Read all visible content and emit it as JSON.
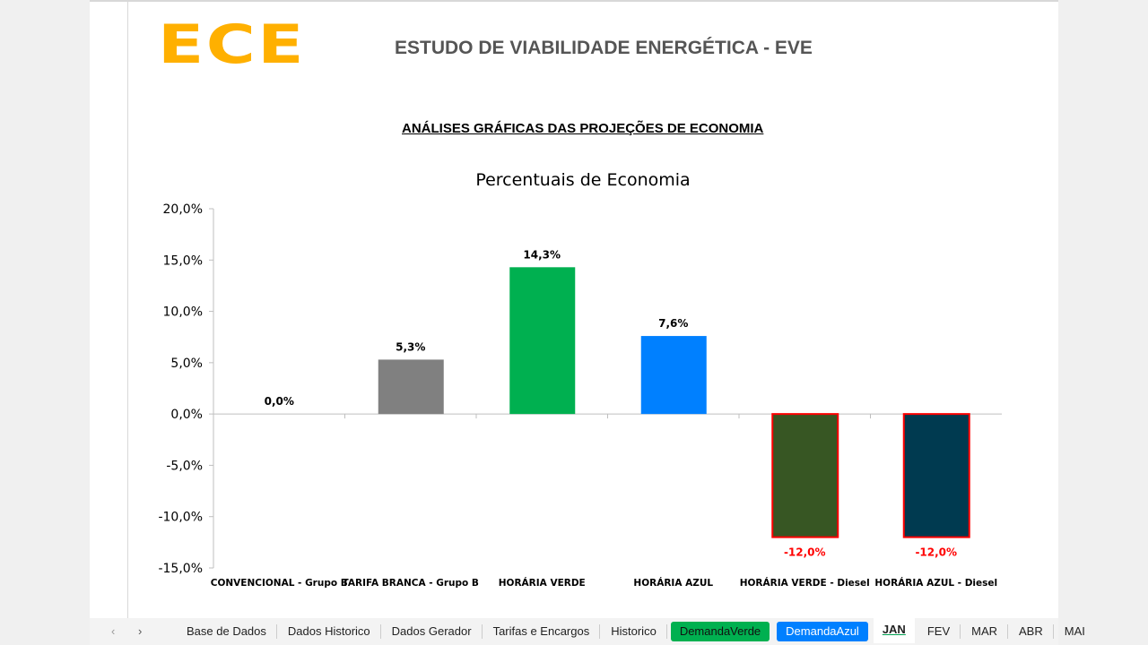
{
  "header": {
    "logo": "ECE",
    "title": "ESTUDO DE VIABILIDADE ENERGÉTICA - EVE",
    "subtitle": "ANÁLISES GRÁFICAS DAS PROJEÇÕES DE ECONOMIA"
  },
  "chart_data": {
    "type": "bar",
    "title": "Percentuais de Economia",
    "categories": [
      "CONVENCIONAL - Grupo B",
      "TARIFA BRANCA - Grupo B",
      "HORÁRIA VERDE",
      "HORÁRIA AZUL",
      "HORÁRIA VERDE - Diesel",
      "HORÁRIA AZUL - Diesel"
    ],
    "values": [
      0.0,
      5.3,
      14.3,
      7.6,
      -12.0,
      -12.0
    ],
    "data_labels": [
      "0,0%",
      "5,3%",
      "14,3%",
      "7,6%",
      "-12,0%",
      "-12,0%"
    ],
    "colors": [
      "#808080",
      "#808080",
      "#00b050",
      "#0080ff",
      "#375623",
      "#003a50"
    ],
    "ylim": [
      -15,
      20
    ],
    "yticks": [
      20,
      15,
      10,
      5,
      0,
      -5,
      -10,
      -15
    ],
    "ytick_labels": [
      "20,0%",
      "15,0%",
      "10,0%",
      "5,0%",
      "0,0%",
      "-5,0%",
      "-10,0%",
      "-15,0%"
    ],
    "negative_outline": "#ff0000",
    "negative_label_color": "#ff0000",
    "grid": false
  },
  "tabs": {
    "nav_prev": "‹",
    "nav_next": "›",
    "sheets": [
      {
        "label": "Base de Dados"
      },
      {
        "label": "Dados Historico"
      },
      {
        "label": "Dados Gerador"
      },
      {
        "label": "Tarifas e Encargos"
      },
      {
        "label": "Historico"
      },
      {
        "label": "DemandaVerde",
        "color": "#00b050"
      },
      {
        "label": "DemandaAzul",
        "color": "#0080ff"
      },
      {
        "label": "JAN",
        "active": true
      },
      {
        "label": "FEV"
      },
      {
        "label": "MAR"
      },
      {
        "label": "ABR"
      },
      {
        "label": "MAI"
      }
    ]
  }
}
